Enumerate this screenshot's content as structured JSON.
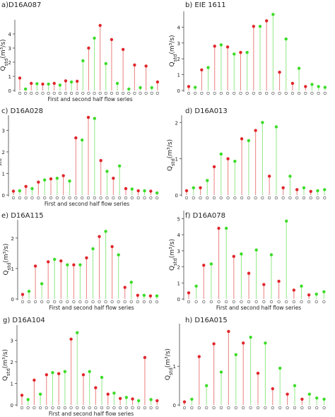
{
  "colors": {
    "first_half": "#e0262b",
    "second_half": "#3cdc28",
    "stem_first": "#ee8a8a",
    "stem_second": "#9bea90",
    "axis": "#444444"
  },
  "chart_data": [
    {
      "type": "stem",
      "title": "a)D16A087",
      "xlabel": "First and second half flow series",
      "ylabel": "Q_std(m³/s)",
      "ylim": [
        0,
        5
      ],
      "yticks": [
        0,
        1,
        2,
        3,
        4
      ],
      "series": [
        {
          "values": [
            0.88,
            0.5,
            0.45,
            0.5,
            0.68,
            0.65,
            3.0,
            4.6,
            3.6,
            2.9,
            1.8,
            1.73,
            0.6
          ]
        },
        {
          "values": [
            0.1,
            0.48,
            0.45,
            0.38,
            0.6,
            2.1,
            3.7,
            1.9,
            0.5,
            0.1,
            0.2,
            0.2
          ]
        }
      ]
    },
    {
      "type": "stem",
      "title": "b) EIE 1611",
      "xlabel": "",
      "ylabel": "Q_std(m³/s)",
      "ylim": [
        0,
        5
      ],
      "yticks": [
        0,
        1,
        2,
        3,
        4
      ],
      "series": [
        {
          "values": [
            0.25,
            1.3,
            2.8,
            2.75,
            2.4,
            4.05,
            4.4,
            1.15,
            0.45,
            0.25
          ]
        },
        {
          "values": [
            0.2,
            1.45,
            2.88,
            2.3,
            2.4,
            4.05,
            4.8,
            3.25,
            1.4,
            0.38,
            0.25,
            0.2
          ]
        }
      ]
    },
    {
      "type": "stem",
      "title": "c) D16A028",
      "xlabel": "First and second half flow series",
      "ylabel": "Q_std(m³/s)",
      "ylim": [
        0,
        3.7
      ],
      "yticks": [
        0,
        1,
        2,
        3
      ],
      "series": [
        {
          "values": [
            0.18,
            0.4,
            0.6,
            0.75,
            0.9,
            2.65,
            3.6,
            1.6,
            0.78,
            0.3,
            0.2,
            0.18
          ]
        },
        {
          "values": [
            0.2,
            0.3,
            0.7,
            0.78,
            0.65,
            2.55,
            3.55,
            1.1,
            1.35,
            0.28,
            0.2,
            0.1
          ]
        }
      ]
    },
    {
      "type": "stem",
      "title": "d) D16A013",
      "xlabel": "",
      "ylabel": "Q_std(m³/s)",
      "ylim": [
        0,
        2.2
      ],
      "yticks": [
        0,
        1,
        2
      ],
      "series": [
        {
          "values": [
            0.12,
            0.2,
            0.78,
            1.0,
            1.55,
            1.78,
            0.52,
            0.2,
            0.15,
            0.1
          ]
        },
        {
          "values": [
            0.2,
            0.4,
            1.13,
            0.93,
            1.5,
            2.0,
            1.88,
            0.52,
            0.2,
            0.12,
            0.15
          ]
        }
      ]
    },
    {
      "type": "stem",
      "title": "e) D16A115",
      "xlabel": "First and second half flow series",
      "ylabel": "Q_std(m³/s)",
      "ylim": [
        0,
        2.6
      ],
      "yticks": [
        0,
        1,
        2
      ],
      "series": [
        {
          "values": [
            0.15,
            1.08,
            1.22,
            1.25,
            1.12,
            1.35,
            2.05,
            1.72,
            0.38,
            0.12,
            0.1
          ]
        },
        {
          "values": [
            0.25,
            0.5,
            1.3,
            1.12,
            1.12,
            1.65,
            2.22,
            1.45,
            0.55,
            0.12,
            0.1
          ]
        }
      ]
    },
    {
      "type": "stem",
      "title": "f) D16A078",
      "xlabel": "First and second half flow series",
      "ylabel": "Q_std(m³/s)",
      "ylim": [
        0,
        5.5
      ],
      "yticks": [
        0,
        1,
        2,
        3,
        4,
        5
      ],
      "series": [
        {
          "values": [
            0.38,
            2.1,
            4.4,
            2.65,
            1.6,
            0.9,
            1.1,
            0.55,
            0.25
          ]
        },
        {
          "values": [
            0.8,
            2.18,
            4.4,
            2.8,
            3.05,
            2.75,
            4.85,
            0.8,
            0.3,
            0.45
          ]
        }
      ]
    },
    {
      "type": "stem",
      "title": "g) D16A104",
      "xlabel": "First and second half flow series",
      "ylabel": "Q_std(m³/s)",
      "ylim": [
        0,
        3.7
      ],
      "yticks": [
        0,
        1,
        2,
        3
      ],
      "series": [
        {
          "values": [
            0.45,
            1.15,
            1.4,
            1.45,
            3.05,
            1.4,
            0.8,
            0.5,
            0.3,
            0.28,
            2.2,
            0.2
          ]
        },
        {
          "values": [
            0.25,
            0.5,
            1.5,
            1.55,
            3.35,
            1.55,
            1.28,
            0.55,
            0.35,
            0.2,
            0.25
          ]
        }
      ]
    },
    {
      "type": "stem",
      "title": "h) D16A015",
      "xlabel": "",
      "ylabel": "Q_std(m³/s)",
      "ylim": [
        0,
        2.1
      ],
      "yticks": [
        0,
        1
      ],
      "series": [
        {
          "values": [
            0.08,
            1.25,
            1.58,
            1.9,
            1.6,
            0.82,
            0.42,
            0.28,
            0.15
          ]
        },
        {
          "values": [
            0.15,
            0.5,
            0.85,
            1.3,
            1.75,
            1.6,
            0.95,
            0.5,
            0.28,
            0.18,
            0.15
          ]
        }
      ]
    }
  ]
}
